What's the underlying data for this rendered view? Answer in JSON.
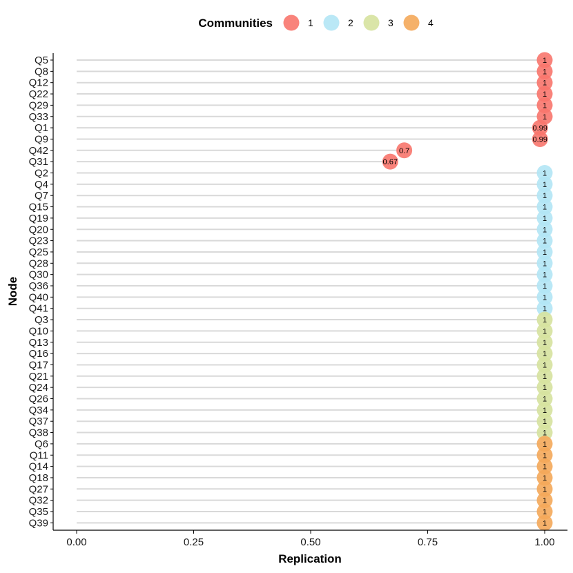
{
  "chart_data": {
    "type": "scatter",
    "xlabel": "Replication",
    "ylabel": "Node",
    "xlim": [
      0,
      1
    ],
    "x_ticks": [
      "0.00",
      "0.25",
      "0.50",
      "0.75",
      "1.00"
    ],
    "x_tick_values": [
      0,
      0.25,
      0.5,
      0.75,
      1.0
    ],
    "grid": "horizontal segments from x=0 to point",
    "legend": {
      "title": "Communities",
      "placement": "top",
      "entries": [
        {
          "label": "1",
          "color": "#F8766D"
        },
        {
          "label": "2",
          "color": "#B3E6F5"
        },
        {
          "label": "3",
          "color": "#D6E29E"
        },
        {
          "label": "4",
          "color": "#F4A95A"
        }
      ]
    },
    "points": [
      {
        "node": "Q5",
        "value": 1,
        "label": "1",
        "community": 1
      },
      {
        "node": "Q8",
        "value": 1,
        "label": "1",
        "community": 1
      },
      {
        "node": "Q12",
        "value": 1,
        "label": "1",
        "community": 1
      },
      {
        "node": "Q22",
        "value": 1,
        "label": "1",
        "community": 1
      },
      {
        "node": "Q29",
        "value": 1,
        "label": "1",
        "community": 1
      },
      {
        "node": "Q33",
        "value": 1,
        "label": "1",
        "community": 1
      },
      {
        "node": "Q1",
        "value": 0.99,
        "label": "0.99",
        "community": 1
      },
      {
        "node": "Q9",
        "value": 0.99,
        "label": "0.99",
        "community": 1
      },
      {
        "node": "Q42",
        "value": 0.7,
        "label": "0.7",
        "community": 1
      },
      {
        "node": "Q31",
        "value": 0.67,
        "label": "0.67",
        "community": 1
      },
      {
        "node": "Q2",
        "value": 1,
        "label": "1",
        "community": 2
      },
      {
        "node": "Q4",
        "value": 1,
        "label": "1",
        "community": 2
      },
      {
        "node": "Q7",
        "value": 1,
        "label": "1",
        "community": 2
      },
      {
        "node": "Q15",
        "value": 1,
        "label": "1",
        "community": 2
      },
      {
        "node": "Q19",
        "value": 1,
        "label": "1",
        "community": 2
      },
      {
        "node": "Q20",
        "value": 1,
        "label": "1",
        "community": 2
      },
      {
        "node": "Q23",
        "value": 1,
        "label": "1",
        "community": 2
      },
      {
        "node": "Q25",
        "value": 1,
        "label": "1",
        "community": 2
      },
      {
        "node": "Q28",
        "value": 1,
        "label": "1",
        "community": 2
      },
      {
        "node": "Q30",
        "value": 1,
        "label": "1",
        "community": 2
      },
      {
        "node": "Q36",
        "value": 1,
        "label": "1",
        "community": 2
      },
      {
        "node": "Q40",
        "value": 1,
        "label": "1",
        "community": 2
      },
      {
        "node": "Q41",
        "value": 1,
        "label": "1",
        "community": 2
      },
      {
        "node": "Q3",
        "value": 1,
        "label": "1",
        "community": 3
      },
      {
        "node": "Q10",
        "value": 1,
        "label": "1",
        "community": 3
      },
      {
        "node": "Q13",
        "value": 1,
        "label": "1",
        "community": 3
      },
      {
        "node": "Q16",
        "value": 1,
        "label": "1",
        "community": 3
      },
      {
        "node": "Q17",
        "value": 1,
        "label": "1",
        "community": 3
      },
      {
        "node": "Q21",
        "value": 1,
        "label": "1",
        "community": 3
      },
      {
        "node": "Q24",
        "value": 1,
        "label": "1",
        "community": 3
      },
      {
        "node": "Q26",
        "value": 1,
        "label": "1",
        "community": 3
      },
      {
        "node": "Q34",
        "value": 1,
        "label": "1",
        "community": 3
      },
      {
        "node": "Q37",
        "value": 1,
        "label": "1",
        "community": 3
      },
      {
        "node": "Q38",
        "value": 1,
        "label": "1",
        "community": 3
      },
      {
        "node": "Q6",
        "value": 1,
        "label": "1",
        "community": 4
      },
      {
        "node": "Q11",
        "value": 1,
        "label": "1",
        "community": 4
      },
      {
        "node": "Q14",
        "value": 1,
        "label": "1",
        "community": 4
      },
      {
        "node": "Q18",
        "value": 1,
        "label": "1",
        "community": 4
      },
      {
        "node": "Q27",
        "value": 1,
        "label": "1",
        "community": 4
      },
      {
        "node": "Q32",
        "value": 1,
        "label": "1",
        "community": 4
      },
      {
        "node": "Q35",
        "value": 1,
        "label": "1",
        "community": 4
      },
      {
        "node": "Q39",
        "value": 1,
        "label": "1",
        "community": 4
      }
    ]
  }
}
